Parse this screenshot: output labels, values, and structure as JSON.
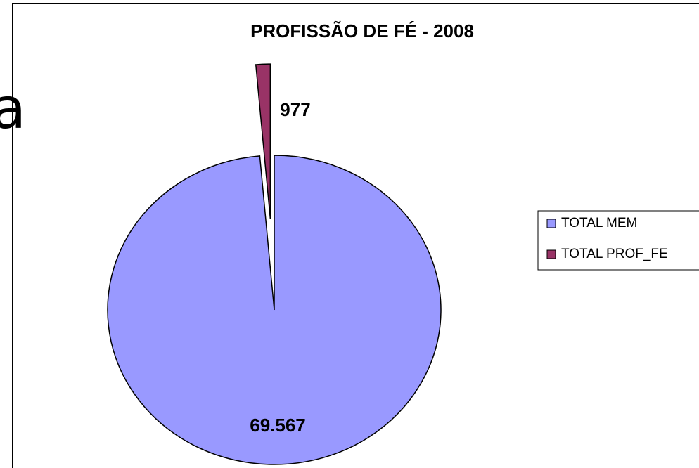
{
  "background_text": "a",
  "chart_data": {
    "type": "pie",
    "title": "PROFISSÃO DE FÉ - 2008",
    "categories": [
      "TOTAL MEM",
      "TOTAL PROF_FE"
    ],
    "values": [
      69567,
      977
    ],
    "value_labels": [
      "69.567",
      "977"
    ],
    "colors": [
      "#9999ff",
      "#993366"
    ],
    "exploded": [
      false,
      true
    ],
    "legend": "right"
  }
}
